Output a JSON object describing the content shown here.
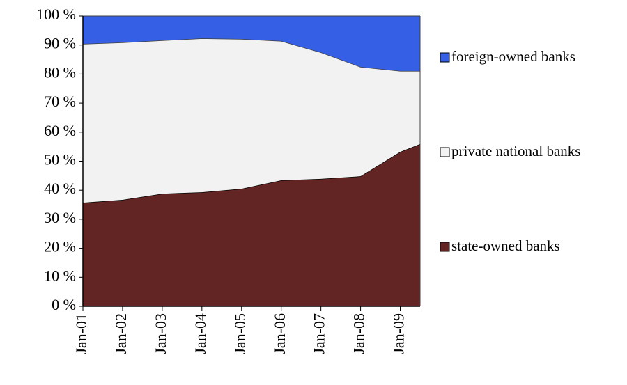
{
  "chart_data": {
    "type": "area",
    "stacked": true,
    "legend": "right",
    "x": [
      2001,
      2002,
      2003,
      2004,
      2005,
      2006,
      2007,
      2008,
      2009,
      2009.5
    ],
    "xlim": [
      2001,
      2009.5
    ],
    "xticks": [
      {
        "value": 2001,
        "label": "Jan-01"
      },
      {
        "value": 2002,
        "label": "Jan-02"
      },
      {
        "value": 2003,
        "label": "Jan-03"
      },
      {
        "value": 2004,
        "label": "Jan-04"
      },
      {
        "value": 2005,
        "label": "Jan-05"
      },
      {
        "value": 2006,
        "label": "Jan-06"
      },
      {
        "value": 2007,
        "label": "Jan-07"
      },
      {
        "value": 2008,
        "label": "Jan-08"
      },
      {
        "value": 2009,
        "label": "Jan-09"
      }
    ],
    "ylim": [
      0,
      100
    ],
    "yticks": [
      {
        "value": 0,
        "label": "0 %"
      },
      {
        "value": 10,
        "label": "10 %"
      },
      {
        "value": 20,
        "label": "20 %"
      },
      {
        "value": 30,
        "label": "30 %"
      },
      {
        "value": 40,
        "label": "40 %"
      },
      {
        "value": 50,
        "label": "50 %"
      },
      {
        "value": 60,
        "label": "60 %"
      },
      {
        "value": 70,
        "label": "70 %"
      },
      {
        "value": 80,
        "label": "80 %"
      },
      {
        "value": 90,
        "label": "90 %"
      },
      {
        "value": 100,
        "label": "100 %"
      }
    ],
    "series": [
      {
        "name": "state-owned banks",
        "color": "#632523",
        "values": [
          35.7,
          36.7,
          38.8,
          39.3,
          40.5,
          43.4,
          43.9,
          44.8,
          53.2,
          55.9
        ]
      },
      {
        "name": "private national banks",
        "color": "#f2f2f2",
        "values": [
          54.7,
          54.2,
          52.8,
          53.0,
          51.6,
          48.0,
          43.6,
          37.7,
          27.9,
          25.2
        ]
      },
      {
        "name": "foreign-owned banks",
        "color": "#3560e6",
        "values": [
          9.6,
          9.1,
          8.4,
          7.7,
          7.9,
          8.6,
          12.5,
          17.5,
          18.9,
          18.9
        ]
      }
    ]
  }
}
